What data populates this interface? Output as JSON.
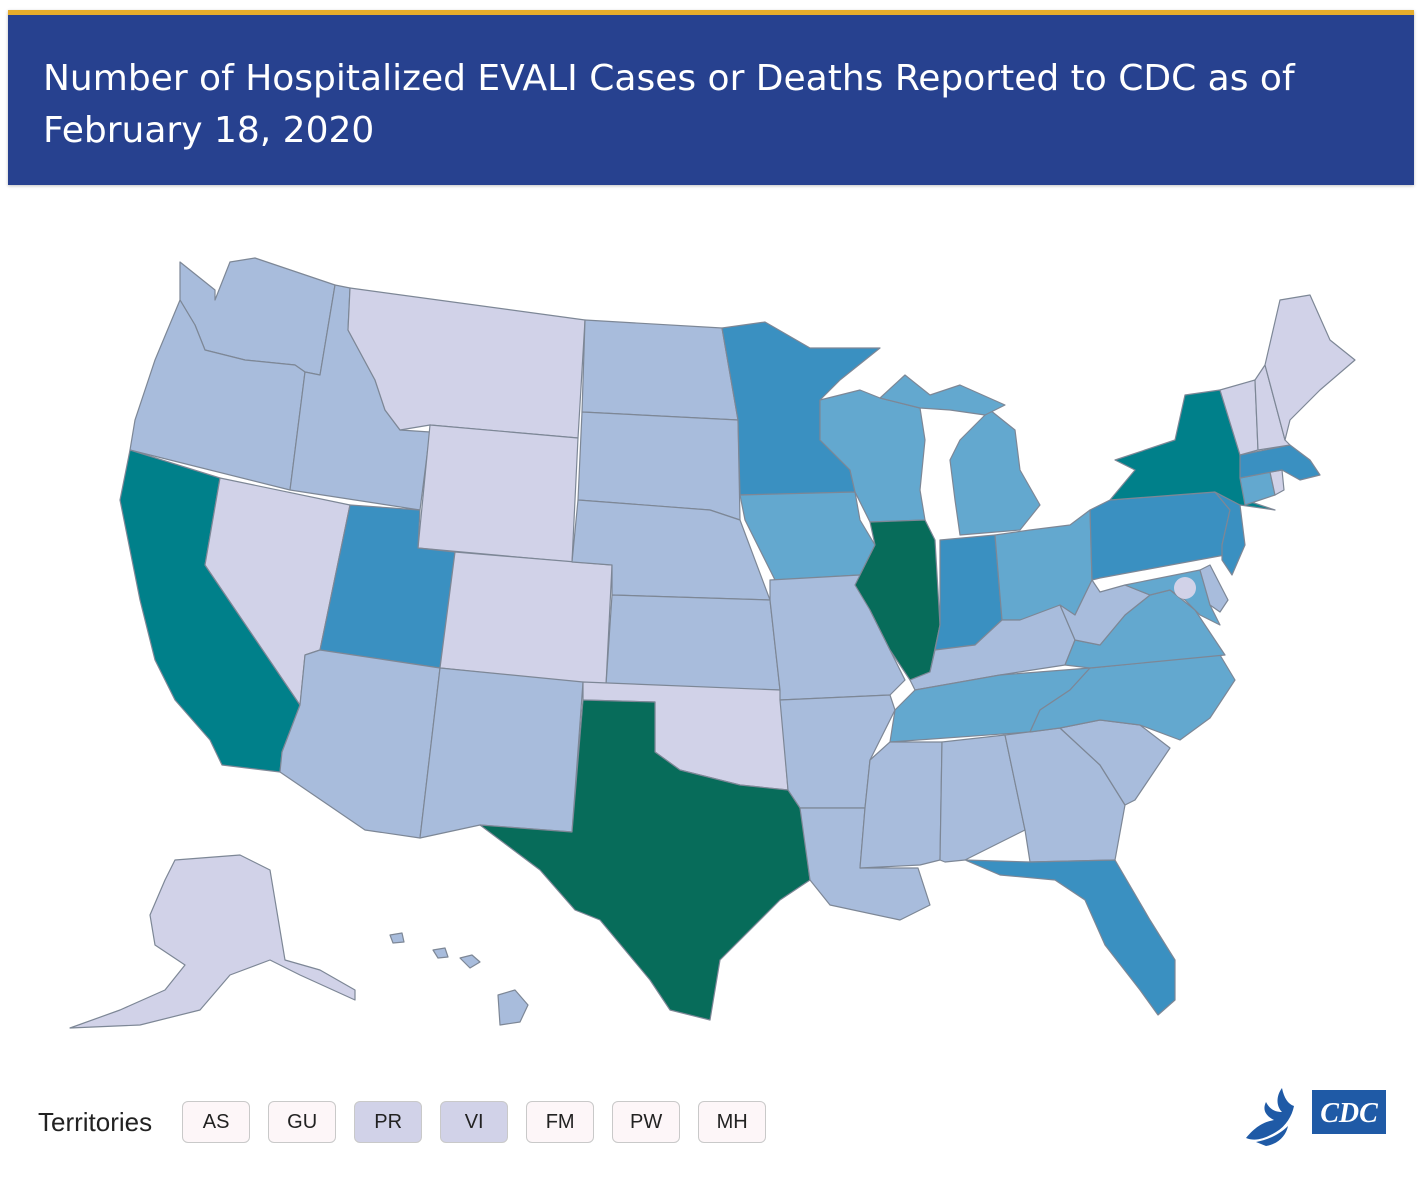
{
  "header": {
    "title": "Number of Hospitalized EVALI Cases or Deaths Reported to CDC as of February 18, 2020"
  },
  "colors": {
    "header_bg": "#27418f",
    "header_accent": "#e6ad2c",
    "bin1": "#d1d2e8",
    "bin2": "#a8bcdc",
    "bin3": "#63a8cf",
    "bin4": "#3a90c1",
    "bin5": "#00808a",
    "bin6": "#076c5a"
  },
  "states": {
    "WA": "bin2",
    "OR": "bin2",
    "CA": "bin5",
    "ID": "bin2",
    "NV": "bin1",
    "MT": "bin1",
    "WY": "bin1",
    "UT": "bin4",
    "AZ": "bin2",
    "CO": "bin1",
    "NM": "bin2",
    "ND": "bin2",
    "SD": "bin2",
    "NE": "bin2",
    "KS": "bin2",
    "OK": "bin1",
    "TX": "bin6",
    "MN": "bin4",
    "IA": "bin3",
    "MO": "bin2",
    "AR": "bin2",
    "LA": "bin2",
    "WI": "bin3",
    "IL": "bin6",
    "MI": "bin3",
    "IN": "bin4",
    "OH": "bin3",
    "KY": "bin2",
    "TN": "bin3",
    "MS": "bin2",
    "AL": "bin2",
    "GA": "bin2",
    "FL": "bin4",
    "SC": "bin2",
    "NC": "bin3",
    "VA": "bin3",
    "WV": "bin2",
    "PA": "bin4",
    "NY": "bin5",
    "VT": "bin1",
    "NH": "bin1",
    "ME": "bin1",
    "MA": "bin4",
    "CT": "bin3",
    "RI": "bin1",
    "NJ": "bin4",
    "DE": "bin2",
    "MD": "bin3",
    "DC": "bin1",
    "AK": "bin1",
    "HI": "bin2"
  },
  "territories": {
    "label": "Territories",
    "items": [
      {
        "code": "AS",
        "color": "bin0"
      },
      {
        "code": "GU",
        "color": "bin0"
      },
      {
        "code": "PR",
        "color": "bin1"
      },
      {
        "code": "VI",
        "color": "bin1"
      },
      {
        "code": "FM",
        "color": "bin0"
      },
      {
        "code": "PW",
        "color": "bin0"
      },
      {
        "code": "MH",
        "color": "bin0"
      }
    ],
    "bin0_color": "#fdf6f8"
  },
  "logo": {
    "text": "CDC",
    "icon": "hhs-eagle-icon",
    "color": "#1f5aa6"
  }
}
